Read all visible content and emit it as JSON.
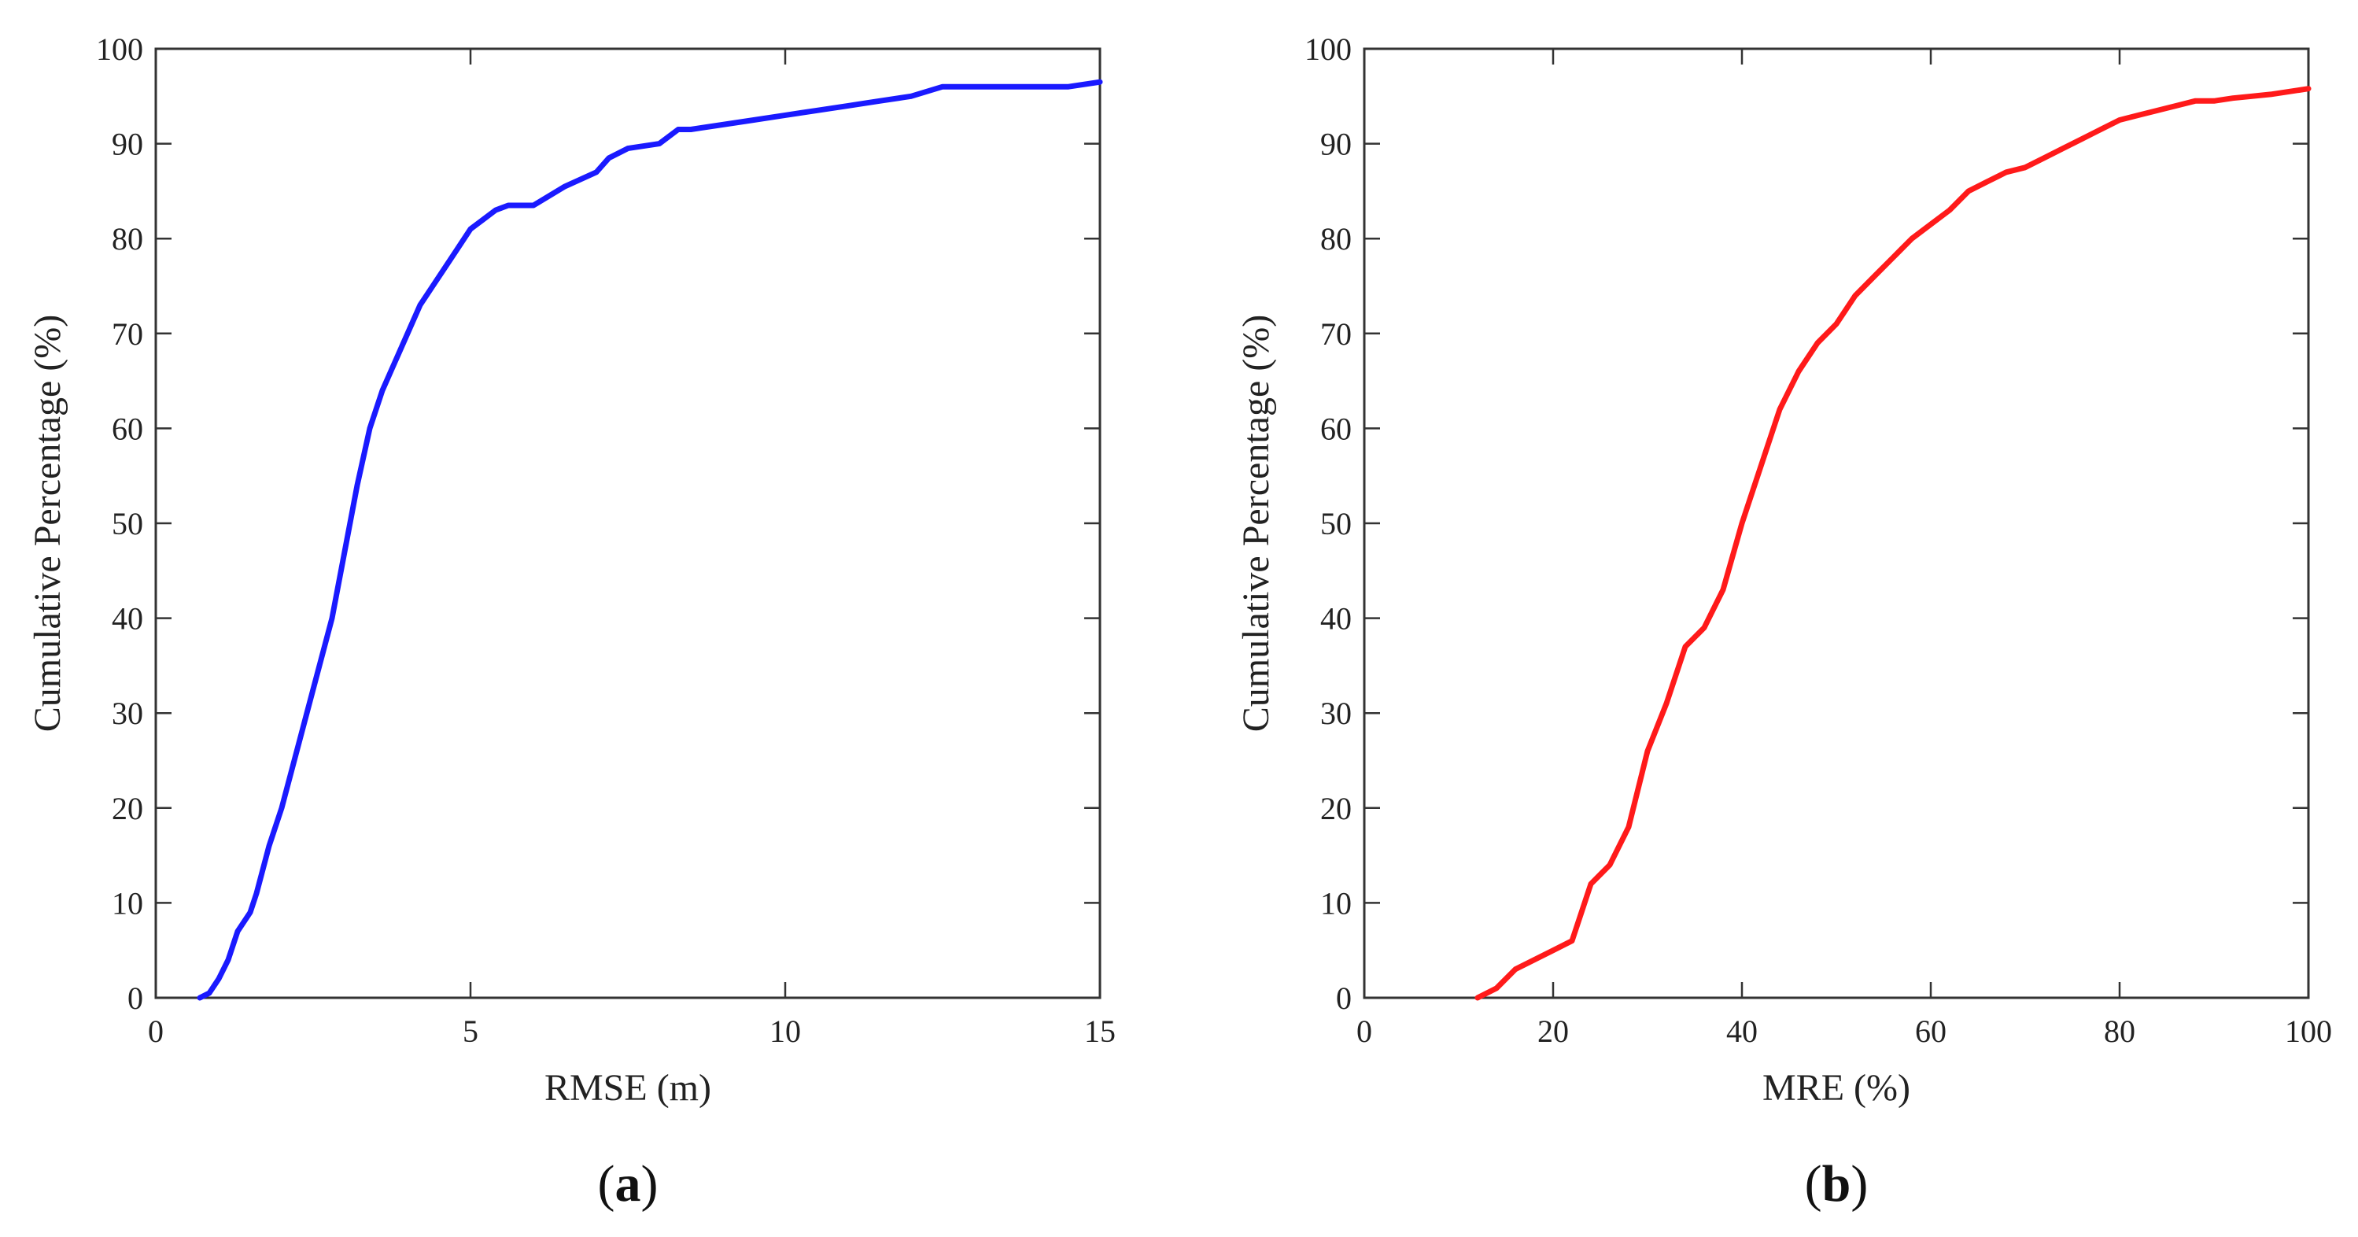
{
  "chart_data": [
    {
      "type": "line",
      "panel_label": "a",
      "xlabel": "RMSE (m)",
      "ylabel": "Cumulative Percentage (%)",
      "xlim": [
        0,
        15
      ],
      "ylim": [
        0,
        100
      ],
      "xticks": [
        0,
        5,
        10,
        15
      ],
      "yticks": [
        0,
        10,
        20,
        30,
        40,
        50,
        60,
        70,
        80,
        90,
        100
      ],
      "grid": false,
      "series": [
        {
          "color": "#1a1aff",
          "x": [
            0.7,
            0.85,
            1.0,
            1.15,
            1.3,
            1.5,
            1.6,
            1.8,
            2.0,
            2.2,
            2.4,
            2.6,
            2.8,
            3.0,
            3.2,
            3.4,
            3.6,
            3.8,
            4.0,
            4.2,
            4.4,
            4.6,
            4.8,
            5.0,
            5.2,
            5.4,
            5.6,
            5.8,
            6.0,
            6.5,
            7.0,
            7.2,
            7.5,
            8.0,
            8.3,
            8.5,
            9.0,
            9.5,
            10.0,
            10.5,
            11.0,
            11.5,
            12.0,
            12.5,
            13.0,
            14.0,
            14.5,
            15.0
          ],
          "y": [
            0,
            0.5,
            2,
            4,
            7,
            9,
            11,
            16,
            20,
            25,
            30,
            35,
            40,
            47,
            54,
            60,
            64,
            67,
            70,
            73,
            75,
            77,
            79,
            81,
            82,
            83,
            83.5,
            83.5,
            83.5,
            85.5,
            87,
            88.5,
            89.5,
            90,
            91.5,
            91.5,
            92,
            92.5,
            93,
            93.5,
            94,
            94.5,
            95,
            96,
            96,
            96,
            96,
            96.5
          ]
        }
      ]
    },
    {
      "type": "line",
      "panel_label": "b",
      "xlabel": "MRE (%)",
      "ylabel": "Cumulative Percentage (%)",
      "xlim": [
        0,
        100
      ],
      "ylim": [
        0,
        100
      ],
      "xticks": [
        0,
        20,
        40,
        60,
        80,
        100
      ],
      "yticks": [
        0,
        10,
        20,
        30,
        40,
        50,
        60,
        70,
        80,
        90,
        100
      ],
      "grid": false,
      "series": [
        {
          "color": "#ff1a1a",
          "x": [
            12,
            14,
            16,
            18,
            20,
            22,
            23,
            24,
            26,
            28,
            30,
            32,
            34,
            36,
            38,
            40,
            42,
            44,
            46,
            48,
            50,
            52,
            54,
            56,
            58,
            60,
            62,
            64,
            66,
            68,
            70,
            72,
            74,
            76,
            78,
            80,
            82,
            84,
            86,
            88,
            90,
            92,
            94,
            96,
            98,
            100
          ],
          "y": [
            0,
            1,
            3,
            4,
            5,
            6,
            9,
            12,
            14,
            18,
            26,
            31,
            37,
            39,
            43,
            50,
            56,
            62,
            66,
            69,
            71,
            74,
            76,
            78,
            80,
            81.5,
            83,
            85,
            86,
            87,
            87.5,
            88.5,
            89.5,
            90.5,
            91.5,
            92.5,
            93,
            93.5,
            94,
            94.5,
            94.5,
            94.8,
            95,
            95.2,
            95.5,
            95.8
          ]
        }
      ]
    }
  ]
}
